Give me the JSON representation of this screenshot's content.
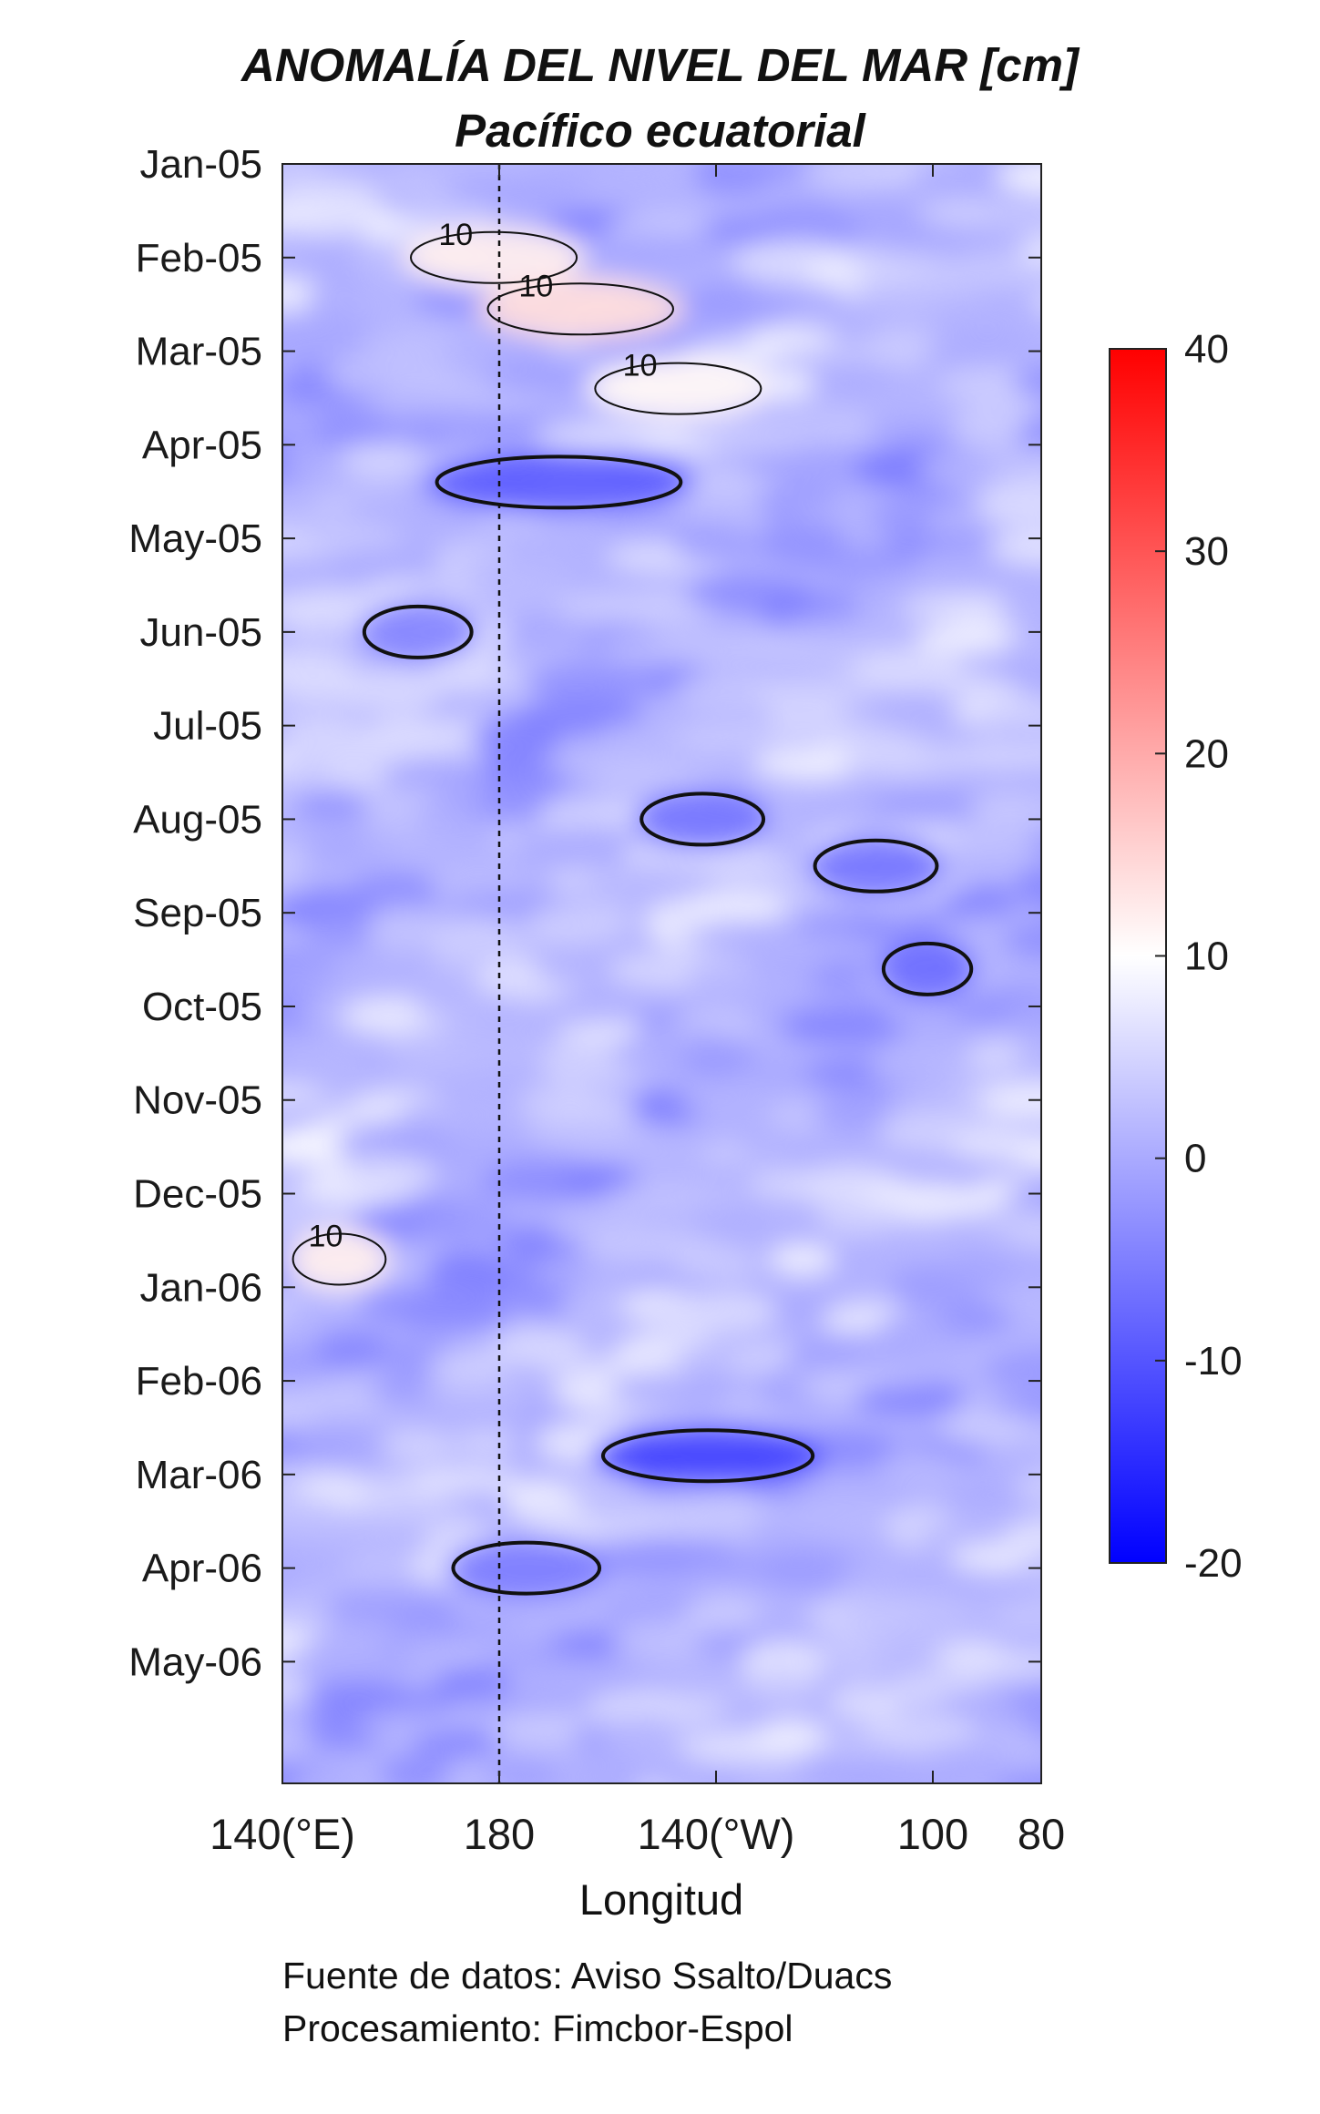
{
  "title": "ANOMALÍA DEL NIVEL DEL MAR [cm]",
  "subtitle": "Pacífico ecuatorial",
  "credits": {
    "source": "Fuente de datos: Aviso Ssalto/Duacs",
    "processing": "Procesamiento: Fimcbor-Espol"
  },
  "chart_data": {
    "type": "heatmap",
    "title": "ANOMALÍA DEL NIVEL DEL MAR [cm]",
    "subtitle": "Pacífico ecuatorial",
    "xlabel": "Longitud",
    "ylabel": "",
    "x_axis": {
      "range_deg_east": [
        140,
        280
      ],
      "ticks": [
        {
          "value": 140,
          "label": "140(°E)"
        },
        {
          "value": 180,
          "label": "180"
        },
        {
          "value": 220,
          "label": "140(°W)"
        },
        {
          "value": 260,
          "label": "100"
        },
        {
          "value": 280,
          "label": "80"
        }
      ]
    },
    "y_axis": {
      "range": [
        "2005-01",
        "2006-06"
      ],
      "ticks": [
        "Jan-05",
        "Feb-05",
        "Mar-05",
        "Apr-05",
        "May-05",
        "Jun-05",
        "Jul-05",
        "Aug-05",
        "Sep-05",
        "Oct-05",
        "Nov-05",
        "Dec-05",
        "Jan-06",
        "Feb-06",
        "Mar-06",
        "Apr-06",
        "May-06"
      ]
    },
    "colorbar": {
      "range": [
        -20,
        40
      ],
      "ticks": [
        40,
        30,
        20,
        10,
        0,
        -10,
        -20
      ],
      "colors": {
        "min": "#0000ff",
        "mid": "#ffffff",
        "max": "#ff0000"
      },
      "mid_value": 10
    },
    "contour_levels": [
      0,
      10
    ],
    "contour_label": "10",
    "dateline_longitude": 180,
    "features": [
      {
        "lon": [
          162,
          196
        ],
        "month": 1.0,
        "value": 12
      },
      {
        "lon": [
          176,
          214
        ],
        "month": 1.55,
        "value": 14
      },
      {
        "lon": [
          196,
          230
        ],
        "month": 2.4,
        "value": 11
      },
      {
        "lon": [
          166,
          216
        ],
        "month": 3.4,
        "value": -9
      },
      {
        "lon": [
          154,
          176
        ],
        "month": 5.0,
        "value": -4
      },
      {
        "lon": [
          205,
          230
        ],
        "month": 7.0,
        "value": -6
      },
      {
        "lon": [
          237,
          262
        ],
        "month": 7.5,
        "value": -6
      },
      {
        "lon": [
          250,
          268
        ],
        "month": 8.6,
        "value": -7
      },
      {
        "lon": [
          141,
          160
        ],
        "month": 11.7,
        "value": 12
      },
      {
        "lon": [
          197,
          240
        ],
        "month": 13.8,
        "value": -12
      },
      {
        "lon": [
          170,
          200
        ],
        "month": 15.0,
        "value": -5
      }
    ]
  }
}
